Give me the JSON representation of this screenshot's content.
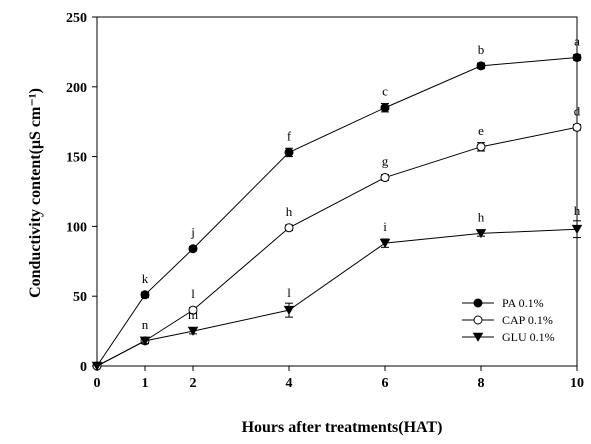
{
  "chart_data": {
    "type": "line",
    "xlabel": "Hours after treatments(HAT)",
    "ylabel": "Conductivity content(μS cm⁻¹)",
    "xlim": [
      0,
      10
    ],
    "ylim": [
      0,
      250
    ],
    "xticks": [
      "0",
      "1",
      "2",
      "4",
      "6",
      "8",
      "10"
    ],
    "xtick_values": [
      0,
      1,
      2,
      4,
      6,
      8,
      10
    ],
    "yticks": [
      "0",
      "50",
      "100",
      "150",
      "200",
      "250"
    ],
    "ytick_values": [
      0,
      50,
      100,
      150,
      200,
      250
    ],
    "grid": false,
    "legend_position": "bottom-right",
    "series": [
      {
        "name": "PA 0.1%",
        "marker": "filled-circle",
        "x": [
          0,
          1,
          2,
          4,
          6,
          8,
          10
        ],
        "y": [
          0,
          51,
          84,
          153,
          185,
          215,
          221
        ],
        "err": [
          0,
          2,
          1.5,
          3,
          3,
          2,
          2
        ],
        "labels": [
          "",
          "k",
          "j",
          "f",
          "c",
          "b",
          "a"
        ]
      },
      {
        "name": "CAP 0.1%",
        "marker": "open-circle",
        "x": [
          0,
          1,
          2,
          4,
          6,
          8,
          10
        ],
        "y": [
          0,
          18,
          40,
          99,
          135,
          157,
          171
        ],
        "err": [
          0,
          2,
          2,
          2,
          2,
          3,
          2
        ],
        "labels": [
          "",
          "n",
          "l",
          "h",
          "g",
          "e",
          "d"
        ]
      },
      {
        "name": "GLU 0.1%",
        "marker": "filled-triangle-down",
        "x": [
          0,
          1,
          2,
          4,
          6,
          8,
          10
        ],
        "y": [
          0,
          18,
          25,
          40,
          88,
          95,
          98
        ],
        "err": [
          0,
          2,
          2,
          5,
          3,
          2,
          6
        ],
        "labels": [
          "",
          "",
          "m",
          "l",
          "i",
          "h",
          "h"
        ]
      }
    ]
  }
}
